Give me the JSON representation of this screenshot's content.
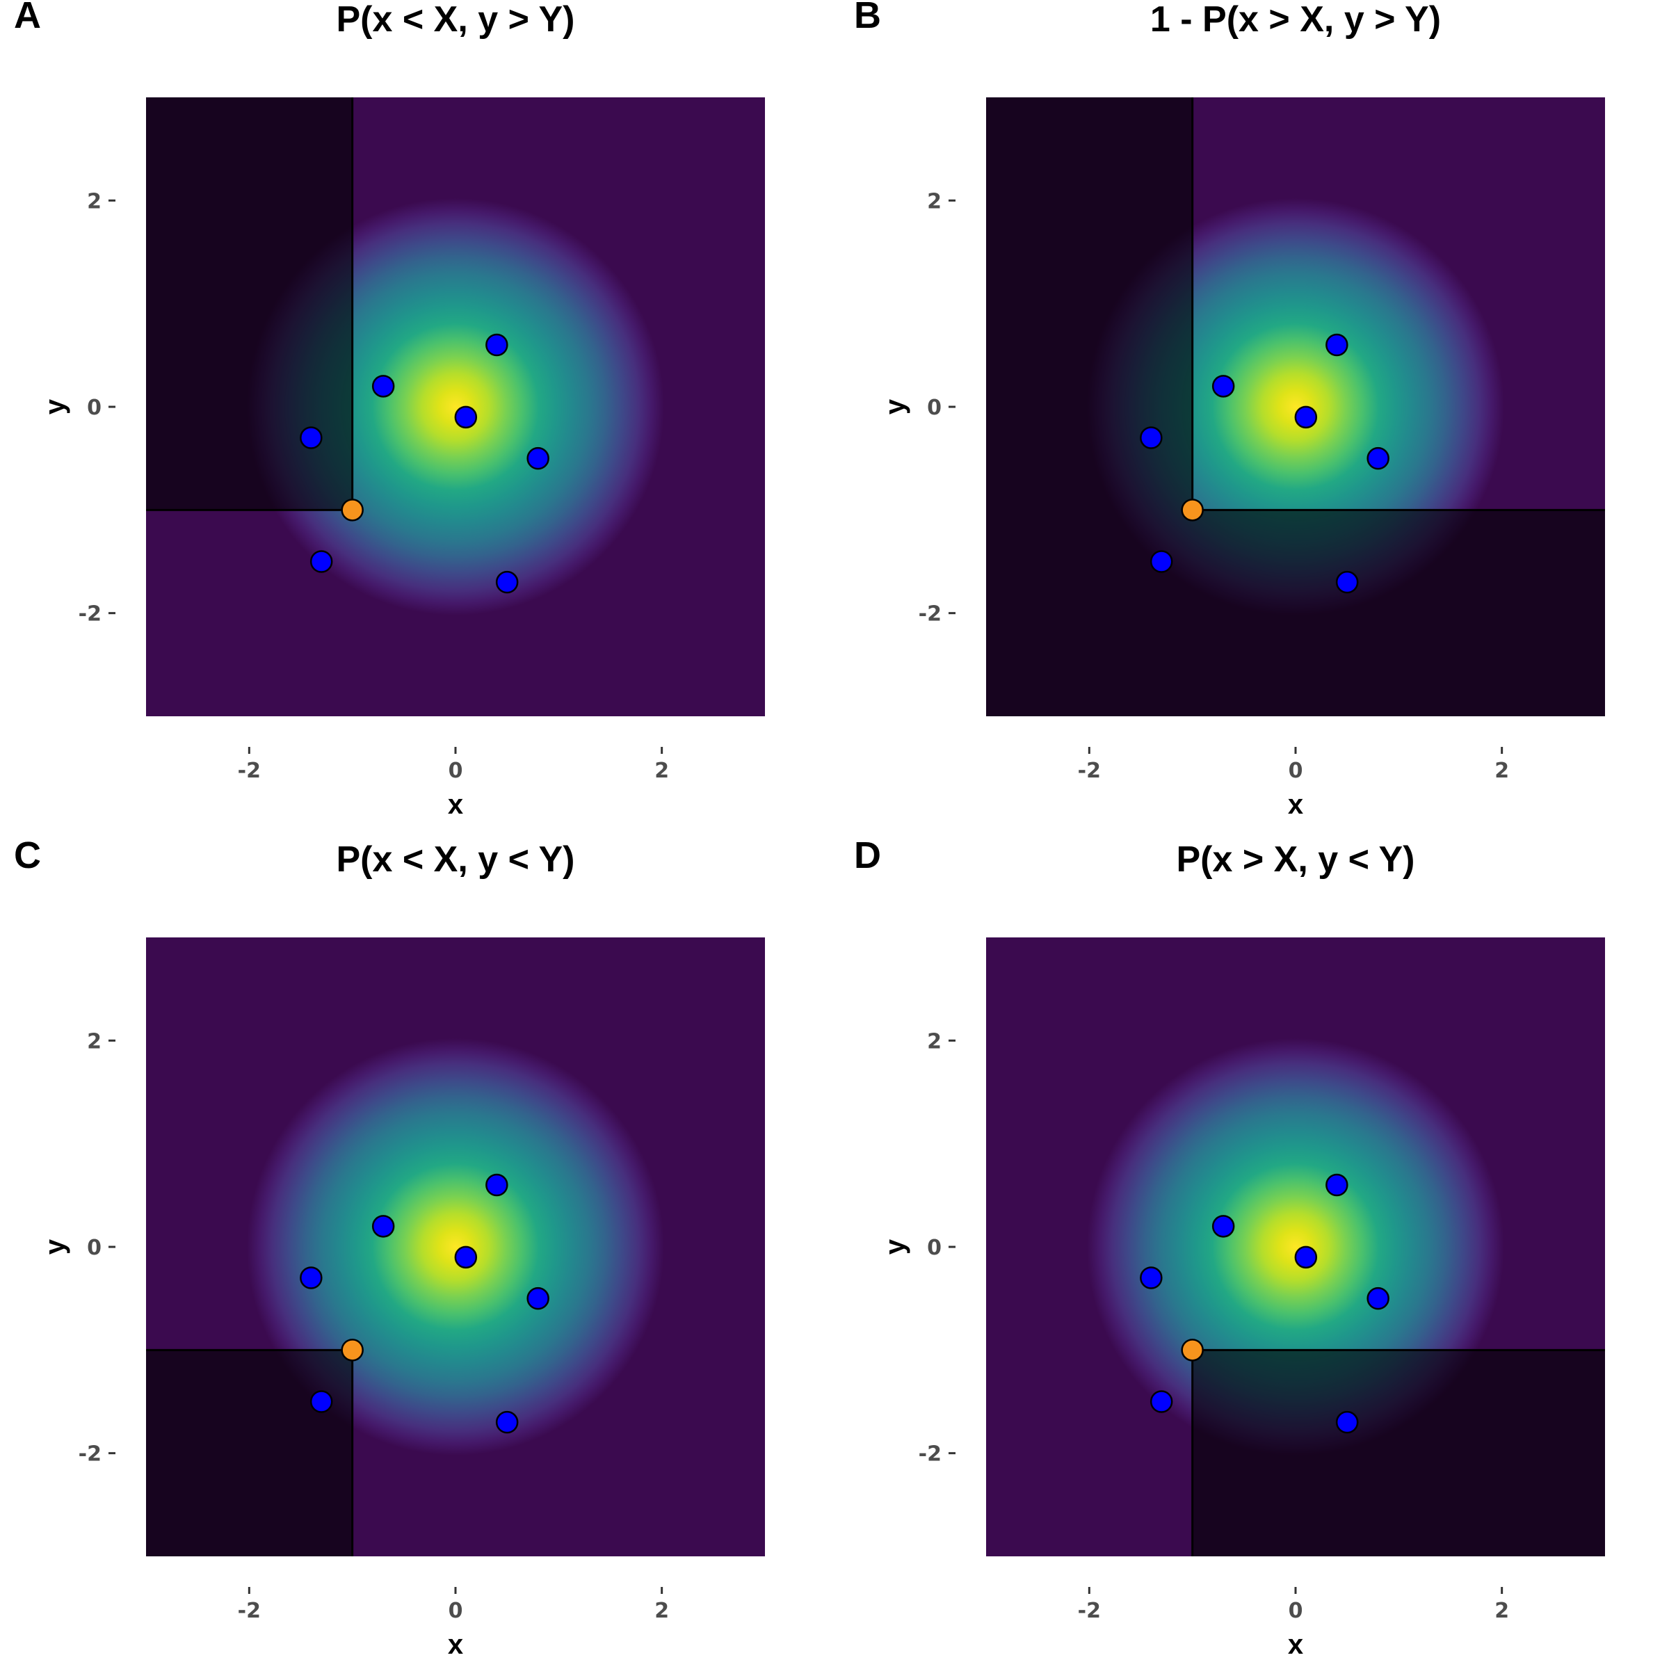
{
  "chart_data": [
    {
      "type": "heatmap",
      "panel_label": "A",
      "title": "P(x < X, y > Y)",
      "xlabel": "x",
      "ylabel": "y",
      "xlim": [
        -3,
        3
      ],
      "ylim": [
        -3,
        3
      ],
      "xticks": [
        -2,
        0,
        2
      ],
      "yticks": [
        -2,
        0,
        2
      ],
      "density": "bivariate standard normal, viridis colour scale",
      "shaded_region": {
        "x_side": "less",
        "y_side": "greater"
      },
      "query_point": {
        "x": -1,
        "y": -1,
        "color": "#f7941d"
      },
      "points": [
        {
          "x": 0.1,
          "y": -0.1
        },
        {
          "x": 0.4,
          "y": 0.6
        },
        {
          "x": -0.7,
          "y": 0.2
        },
        {
          "x": -1.4,
          "y": -0.3
        },
        {
          "x": 0.8,
          "y": -0.5
        },
        {
          "x": -1.3,
          "y": -1.5
        },
        {
          "x": 0.5,
          "y": -1.7
        }
      ],
      "point_color": "#0000ff"
    },
    {
      "type": "heatmap",
      "panel_label": "B",
      "title": "1 - P(x > X, y > Y)",
      "xlabel": "x",
      "ylabel": "y",
      "xlim": [
        -3,
        3
      ],
      "ylim": [
        -3,
        3
      ],
      "xticks": [
        -2,
        0,
        2
      ],
      "yticks": [
        -2,
        0,
        2
      ],
      "density": "bivariate standard normal, viridis colour scale",
      "shaded_region": {
        "complement_of": {
          "x_side": "greater",
          "y_side": "greater"
        }
      },
      "query_point": {
        "x": -1,
        "y": -1,
        "color": "#f7941d"
      },
      "points": [
        {
          "x": 0.1,
          "y": -0.1
        },
        {
          "x": 0.4,
          "y": 0.6
        },
        {
          "x": -0.7,
          "y": 0.2
        },
        {
          "x": -1.4,
          "y": -0.3
        },
        {
          "x": 0.8,
          "y": -0.5
        },
        {
          "x": -1.3,
          "y": -1.5
        },
        {
          "x": 0.5,
          "y": -1.7
        }
      ],
      "point_color": "#0000ff"
    },
    {
      "type": "heatmap",
      "panel_label": "C",
      "title": "P(x < X, y < Y)",
      "xlabel": "x",
      "ylabel": "y",
      "xlim": [
        -3,
        3
      ],
      "ylim": [
        -3,
        3
      ],
      "xticks": [
        -2,
        0,
        2
      ],
      "yticks": [
        -2,
        0,
        2
      ],
      "density": "bivariate standard normal, viridis colour scale",
      "shaded_region": {
        "x_side": "less",
        "y_side": "less"
      },
      "query_point": {
        "x": -1,
        "y": -1,
        "color": "#f7941d"
      },
      "points": [
        {
          "x": 0.1,
          "y": -0.1
        },
        {
          "x": 0.4,
          "y": 0.6
        },
        {
          "x": -0.7,
          "y": 0.2
        },
        {
          "x": -1.4,
          "y": -0.3
        },
        {
          "x": 0.8,
          "y": -0.5
        },
        {
          "x": -1.3,
          "y": -1.5
        },
        {
          "x": 0.5,
          "y": -1.7
        }
      ],
      "point_color": "#0000ff"
    },
    {
      "type": "heatmap",
      "panel_label": "D",
      "title": "P(x > X, y < Y)",
      "xlabel": "x",
      "ylabel": "y",
      "xlim": [
        -3,
        3
      ],
      "ylim": [
        -3,
        3
      ],
      "xticks": [
        -2,
        0,
        2
      ],
      "yticks": [
        -2,
        0,
        2
      ],
      "density": "bivariate standard normal, viridis colour scale",
      "shaded_region": {
        "x_side": "greater",
        "y_side": "less"
      },
      "query_point": {
        "x": -1,
        "y": -1,
        "color": "#f7941d"
      },
      "points": [
        {
          "x": 0.1,
          "y": -0.1
        },
        {
          "x": 0.4,
          "y": 0.6
        },
        {
          "x": -0.7,
          "y": 0.2
        },
        {
          "x": -1.4,
          "y": -0.3
        },
        {
          "x": 0.8,
          "y": -0.5
        },
        {
          "x": -1.3,
          "y": -1.5
        },
        {
          "x": 0.5,
          "y": -1.7
        }
      ],
      "point_color": "#0000ff"
    }
  ],
  "colors": {
    "viridis_low": "#440154",
    "viridis_mid": "#21918c",
    "viridis_high": "#fde725",
    "shade_overlay": "#000000"
  }
}
